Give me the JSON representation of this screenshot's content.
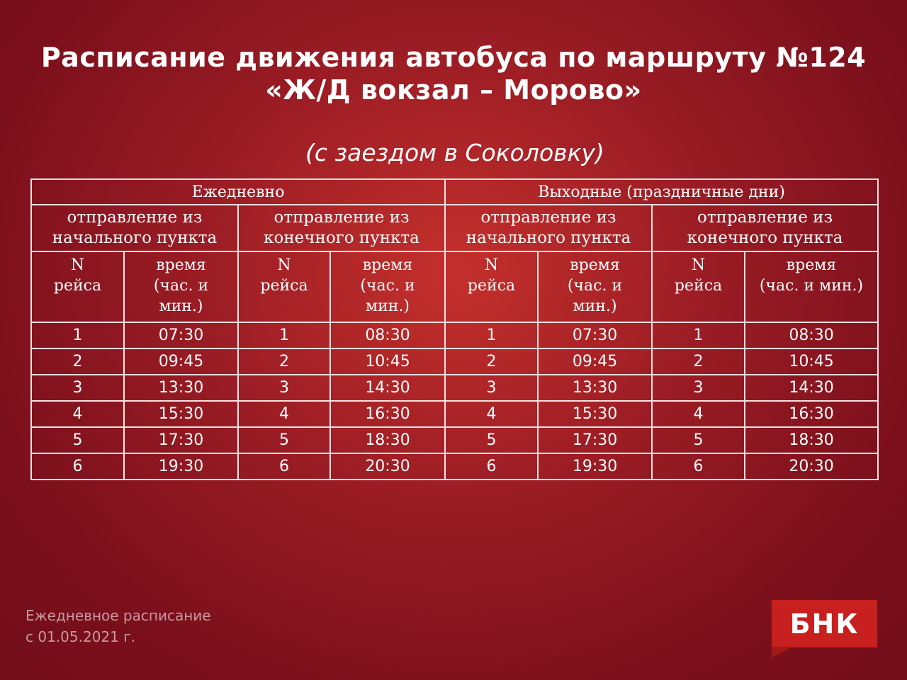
{
  "header": {
    "title_line1": "Расписание движения автобуса по маршруту №124",
    "title_line2": "«Ж/Д вокзал – Морово»",
    "subtitle": "(с заездом в Соколовку)"
  },
  "table": {
    "groups": [
      "Ежедневно",
      "Выходные (праздничные дни)"
    ],
    "subgroups": [
      "отправление из\nначального пункта",
      "отправление из\nконечного пункта",
      "отправление из\nначального пункта",
      "отправление из\nконечного пункта"
    ],
    "columns": [
      "N\nрейса",
      "время\n(час. и\nмин.)",
      "N\nрейса",
      "время\n(час. и\nмин.)",
      "N\nрейса",
      "время\n(час. и\nмин.)",
      "N\nрейса",
      "время\n(час. и мин.)"
    ],
    "rows": [
      [
        "1",
        "07:30",
        "1",
        "08:30",
        "1",
        "07:30",
        "1",
        "08:30"
      ],
      [
        "2",
        "09:45",
        "2",
        "10:45",
        "2",
        "09:45",
        "2",
        "10:45"
      ],
      [
        "3",
        "13:30",
        "3",
        "14:30",
        "3",
        "13:30",
        "3",
        "14:30"
      ],
      [
        "4",
        "15:30",
        "4",
        "16:30",
        "4",
        "15:30",
        "4",
        "16:30"
      ],
      [
        "5",
        "17:30",
        "5",
        "18:30",
        "5",
        "17:30",
        "5",
        "18:30"
      ],
      [
        "6",
        "19:30",
        "6",
        "20:30",
        "6",
        "19:30",
        "6",
        "20:30"
      ]
    ]
  },
  "footer": {
    "line1": "Ежедневное расписание",
    "line2": "с 01.05.2021 г."
  },
  "logo": {
    "text": "БНК",
    "color": "#c8201e"
  },
  "colors": {
    "background": "#8e1620",
    "text": "#ffffff",
    "footer_text": "#c79a9e",
    "border": "#f2e2e2"
  }
}
